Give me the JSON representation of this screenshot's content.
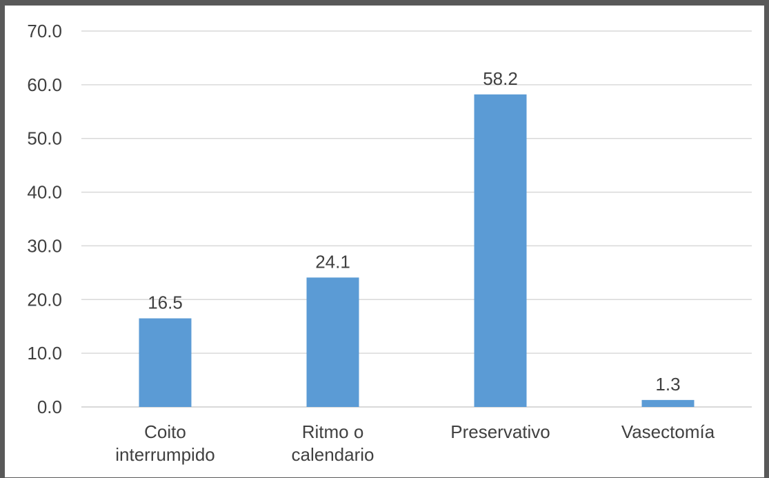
{
  "chart_data": {
    "type": "bar",
    "title": "",
    "xlabel": "",
    "ylabel": "",
    "categories": [
      [
        "Coito",
        "interrumpido"
      ],
      [
        "Ritmo o",
        "calendario"
      ],
      [
        "Preservativo"
      ],
      [
        "Vasectomía"
      ]
    ],
    "values": [
      16.5,
      24.1,
      58.2,
      1.3
    ],
    "value_labels": [
      "16.5",
      "24.1",
      "58.2",
      "1.3"
    ],
    "ylim": [
      0,
      70
    ],
    "yticks": [
      "0.0",
      "10.0",
      "20.0",
      "30.0",
      "40.0",
      "50.0",
      "60.0",
      "70.0"
    ],
    "grid": true,
    "legend": "none",
    "bar_color": "#5B9BD5",
    "grid_color": "#D9D9D9",
    "text_color": "#404040"
  }
}
